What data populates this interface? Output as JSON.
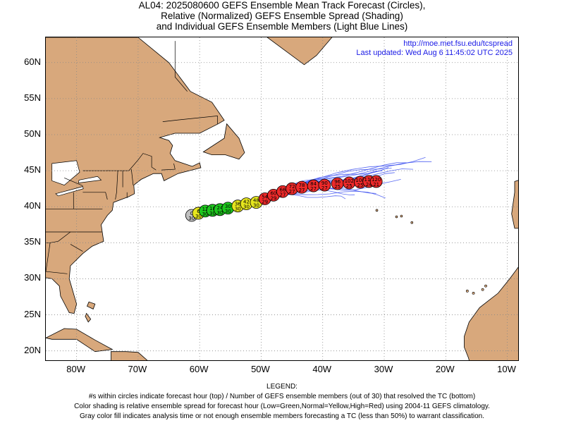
{
  "title": {
    "line1": "AL04: 2025080600 GEFS Ensemble Mean Track Forecast (Circles),",
    "line2": "Relative (Normalized) GEFS Ensemble Spread (Shading)",
    "line3": "and Individual GEFS Ensemble Members (Light Blue Lines)"
  },
  "credit": {
    "url": "http://moe.met.fsu.edu/tcspread",
    "updated": "Last updated: Wed Aug 6 11:45:02 UTC 2025"
  },
  "axes": {
    "lat_labels": [
      "60N",
      "55N",
      "50N",
      "45N",
      "40N",
      "35N",
      "30N",
      "25N",
      "20N"
    ],
    "lon_labels": [
      "80W",
      "70W",
      "60W",
      "50W",
      "40W",
      "30W",
      "20W",
      "10W"
    ],
    "lat_values": [
      60,
      55,
      50,
      45,
      40,
      35,
      30,
      25,
      20
    ],
    "lon_values": [
      -80,
      -70,
      -60,
      -50,
      -40,
      -30,
      -20,
      -10
    ],
    "lon_range": [
      -85,
      -8
    ],
    "lat_range": [
      18.5,
      63.5
    ]
  },
  "colors": {
    "land": "#d8a87c",
    "ocean": "#ffffff",
    "member_line": "#3b4ff0",
    "low_spread": "#1ec81e",
    "normal_spread": "#e6e61e",
    "high_spread": "#ee2a2a",
    "gray_fill": "#c0c0c0"
  },
  "track": [
    {
      "hour": "0",
      "members": "30",
      "lon": -61.3,
      "lat": 38.8,
      "spread": "gray"
    },
    {
      "hour": "6",
      "members": "30",
      "lon": -60.2,
      "lat": 39.1,
      "spread": "yellow"
    },
    {
      "hour": "12",
      "members": "30",
      "lon": -59.1,
      "lat": 39.4,
      "spread": "green"
    },
    {
      "hour": "18",
      "members": "30",
      "lon": -57.9,
      "lat": 39.5,
      "spread": "green"
    },
    {
      "hour": "24",
      "members": "30",
      "lon": -56.7,
      "lat": 39.6,
      "spread": "green"
    },
    {
      "hour": "30",
      "members": "30",
      "lon": -55.4,
      "lat": 39.8,
      "spread": "green"
    },
    {
      "hour": "36",
      "members": "30",
      "lon": -53.8,
      "lat": 40.1,
      "spread": "yellow"
    },
    {
      "hour": "42",
      "members": "30",
      "lon": -52.4,
      "lat": 40.4,
      "spread": "yellow"
    },
    {
      "hour": "48",
      "members": "30",
      "lon": -50.8,
      "lat": 40.6,
      "spread": "yellow"
    },
    {
      "hour": "54",
      "members": "29",
      "lon": -49.4,
      "lat": 41.1,
      "spread": "red"
    },
    {
      "hour": "60",
      "members": "29",
      "lon": -48.0,
      "lat": 41.6,
      "spread": "red"
    },
    {
      "hour": "66",
      "members": "27",
      "lon": -46.5,
      "lat": 42.1,
      "spread": "red"
    },
    {
      "hour": "72",
      "members": "27",
      "lon": -45.0,
      "lat": 42.5,
      "spread": "red"
    },
    {
      "hour": "78",
      "members": "27",
      "lon": -43.4,
      "lat": 42.7,
      "spread": "red"
    },
    {
      "hour": "84",
      "members": "27",
      "lon": -41.5,
      "lat": 42.9,
      "spread": "red"
    },
    {
      "hour": "90",
      "members": "27",
      "lon": -39.7,
      "lat": 43.0,
      "spread": "red"
    },
    {
      "hour": "96",
      "members": "25",
      "lon": -37.6,
      "lat": 43.2,
      "spread": "red"
    },
    {
      "hour": "102",
      "members": "25",
      "lon": -35.7,
      "lat": 43.3,
      "spread": "red"
    },
    {
      "hour": "108",
      "members": "25",
      "lon": -33.9,
      "lat": 43.4,
      "spread": "red"
    },
    {
      "hour": "114",
      "members": "24",
      "lon": -32.5,
      "lat": 43.5,
      "spread": "red"
    },
    {
      "hour": "120",
      "members": "21",
      "lon": -31.3,
      "lat": 43.5,
      "spread": "red"
    }
  ],
  "legend": {
    "heading": "LEGEND:",
    "line1": "#s within circles indicate forecast hour (top) / Number of GEFS ensemble members (out of 30) that resolved the TC (bottom)",
    "line2": "Color shading is relative ensemble spread for forecast hour (Low=Green,Normal=Yellow,High=Red) using 2004-11 GEFS climatology.",
    "line3": "Gray color fill indicates analysis time or not enough ensemble members forecasting a TC (less than 50%) to warrant classification."
  }
}
